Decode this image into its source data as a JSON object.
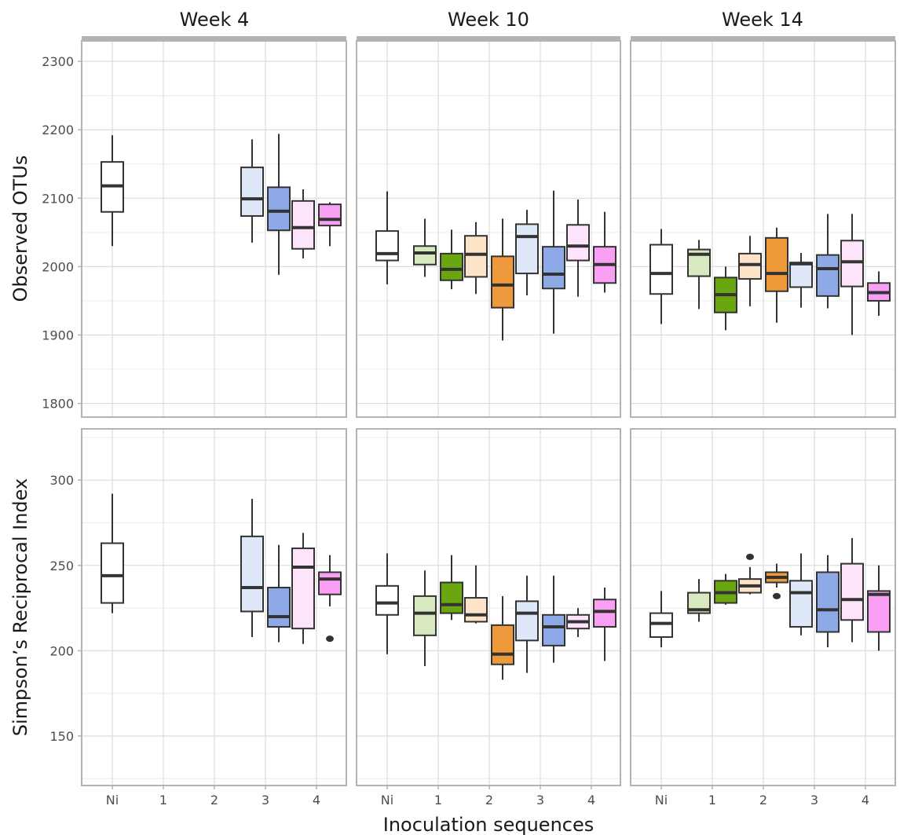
{
  "chart_data": {
    "type": "boxplot",
    "xlabel": "Inoculation sequences",
    "facet_columns": [
      "Week 4",
      "Week 10",
      "Week 14"
    ],
    "categories": [
      "Ni",
      "1",
      "2",
      "3",
      "4"
    ],
    "grid": true,
    "legend": "none",
    "series_colors": [
      "#ffffff",
      "#d8e8bf",
      "#6aa610",
      "#fde3c8",
      "#ee9a3a",
      "#dfe8f8",
      "#8eaae6",
      "#fde4fa",
      "#f9a0f5"
    ],
    "rows": [
      {
        "ylabel": "Observed OTUs",
        "ylim": [
          1780,
          2330
        ],
        "yticks": [
          1800,
          1900,
          2000,
          2100,
          2200,
          2300
        ],
        "panels": [
          {
            "week": "Week 4",
            "boxes": [
              {
                "category": "Ni",
                "offset": 0,
                "color": "#ffffff",
                "whisker_low": 2030,
                "q1": 2080,
                "median": 2118,
                "q3": 2153,
                "whisker_high": 2192,
                "outliers": []
              },
              {
                "category": "3",
                "offset": -1,
                "color": "#dfe8f8",
                "whisker_low": 2035,
                "q1": 2074,
                "median": 2099,
                "q3": 2145,
                "whisker_high": 2186,
                "outliers": []
              },
              {
                "category": "3",
                "offset": 1,
                "color": "#8eaae6",
                "whisker_low": 1988,
                "q1": 2053,
                "median": 2081,
                "q3": 2116,
                "whisker_high": 2194,
                "outliers": []
              },
              {
                "category": "4",
                "offset": -1,
                "color": "#fde4fa",
                "whisker_low": 2012,
                "q1": 2026,
                "median": 2057,
                "q3": 2096,
                "whisker_high": 2113,
                "outliers": []
              },
              {
                "category": "4",
                "offset": 1,
                "color": "#f9a0f5",
                "whisker_low": 2030,
                "q1": 2060,
                "median": 2069,
                "q3": 2091,
                "whisker_high": 2094,
                "outliers": []
              }
            ]
          },
          {
            "week": "Week 10",
            "boxes": [
              {
                "category": "Ni",
                "offset": 0,
                "color": "#ffffff",
                "whisker_low": 1974,
                "q1": 2009,
                "median": 2019,
                "q3": 2052,
                "whisker_high": 2110,
                "outliers": []
              },
              {
                "category": "1",
                "offset": -1,
                "color": "#d8e8bf",
                "whisker_low": 1985,
                "q1": 2003,
                "median": 2020,
                "q3": 2030,
                "whisker_high": 2070,
                "outliers": []
              },
              {
                "category": "1",
                "offset": 1,
                "color": "#6aa610",
                "whisker_low": 1967,
                "q1": 1980,
                "median": 1996,
                "q3": 2019,
                "whisker_high": 2054,
                "outliers": []
              },
              {
                "category": "2",
                "offset": -1,
                "color": "#fde3c8",
                "whisker_low": 1960,
                "q1": 1985,
                "median": 2018,
                "q3": 2045,
                "whisker_high": 2065,
                "outliers": []
              },
              {
                "category": "2",
                "offset": 1,
                "color": "#ee9a3a",
                "whisker_low": 1892,
                "q1": 1940,
                "median": 1973,
                "q3": 2015,
                "whisker_high": 2070,
                "outliers": []
              },
              {
                "category": "3",
                "offset": -1,
                "color": "#dfe8f8",
                "whisker_low": 1958,
                "q1": 1990,
                "median": 2044,
                "q3": 2062,
                "whisker_high": 2083,
                "outliers": []
              },
              {
                "category": "3",
                "offset": 1,
                "color": "#8eaae6",
                "whisker_low": 1902,
                "q1": 1968,
                "median": 1989,
                "q3": 2029,
                "whisker_high": 2111,
                "outliers": []
              },
              {
                "category": "4",
                "offset": -1,
                "color": "#fde4fa",
                "whisker_low": 1956,
                "q1": 2009,
                "median": 2030,
                "q3": 2061,
                "whisker_high": 2098,
                "outliers": []
              },
              {
                "category": "4",
                "offset": 1,
                "color": "#f9a0f5",
                "whisker_low": 1962,
                "q1": 1976,
                "median": 2003,
                "q3": 2029,
                "whisker_high": 2080,
                "outliers": []
              }
            ]
          },
          {
            "week": "Week 14",
            "boxes": [
              {
                "category": "Ni",
                "offset": 0,
                "color": "#ffffff",
                "whisker_low": 1916,
                "q1": 1960,
                "median": 1990,
                "q3": 2032,
                "whisker_high": 2055,
                "outliers": []
              },
              {
                "category": "1",
                "offset": -1,
                "color": "#d8e8bf",
                "whisker_low": 1938,
                "q1": 1986,
                "median": 2018,
                "q3": 2025,
                "whisker_high": 2039,
                "outliers": []
              },
              {
                "category": "1",
                "offset": 1,
                "color": "#6aa610",
                "whisker_low": 1907,
                "q1": 1933,
                "median": 1959,
                "q3": 1984,
                "whisker_high": 2000,
                "outliers": []
              },
              {
                "category": "2",
                "offset": -1,
                "color": "#fde3c8",
                "whisker_low": 1942,
                "q1": 1982,
                "median": 2003,
                "q3": 2019,
                "whisker_high": 2045,
                "outliers": []
              },
              {
                "category": "2",
                "offset": 1,
                "color": "#ee9a3a",
                "whisker_low": 1918,
                "q1": 1964,
                "median": 1990,
                "q3": 2042,
                "whisker_high": 2057,
                "outliers": []
              },
              {
                "category": "3",
                "offset": -1,
                "color": "#dfe8f8",
                "whisker_low": 1940,
                "q1": 1970,
                "median": 2004,
                "q3": 2006,
                "whisker_high": 2020,
                "outliers": []
              },
              {
                "category": "3",
                "offset": 1,
                "color": "#8eaae6",
                "whisker_low": 1939,
                "q1": 1957,
                "median": 1997,
                "q3": 2017,
                "whisker_high": 2077,
                "outliers": []
              },
              {
                "category": "4",
                "offset": -1,
                "color": "#fde4fa",
                "whisker_low": 1900,
                "q1": 1971,
                "median": 2007,
                "q3": 2038,
                "whisker_high": 2077,
                "outliers": []
              },
              {
                "category": "4",
                "offset": 1,
                "color": "#f9a0f5",
                "whisker_low": 1928,
                "q1": 1950,
                "median": 1962,
                "q3": 1976,
                "whisker_high": 1993,
                "outliers": []
              }
            ]
          }
        ]
      },
      {
        "ylabel": "Simpson’s Reciprocal Index",
        "ylim": [
          121,
          330
        ],
        "yticks": [
          150,
          200,
          250,
          300
        ],
        "panels": [
          {
            "week": "Week 4",
            "boxes": [
              {
                "category": "Ni",
                "offset": 0,
                "color": "#ffffff",
                "whisker_low": 222,
                "q1": 228,
                "median": 244,
                "q3": 263,
                "whisker_high": 292,
                "outliers": []
              },
              {
                "category": "3",
                "offset": -1,
                "color": "#dfe8f8",
                "whisker_low": 208,
                "q1": 223,
                "median": 237,
                "q3": 267,
                "whisker_high": 289,
                "outliers": []
              },
              {
                "category": "3",
                "offset": 1,
                "color": "#8eaae6",
                "whisker_low": 205,
                "q1": 214,
                "median": 220,
                "q3": 237,
                "whisker_high": 262,
                "outliers": []
              },
              {
                "category": "4",
                "offset": -1,
                "color": "#fde4fa",
                "whisker_low": 204,
                "q1": 213,
                "median": 249,
                "q3": 260,
                "whisker_high": 269,
                "outliers": []
              },
              {
                "category": "4",
                "offset": 1,
                "color": "#f9a0f5",
                "whisker_low": 226,
                "q1": 233,
                "median": 242,
                "q3": 246,
                "whisker_high": 256,
                "outliers": [
                  207
                ]
              }
            ]
          },
          {
            "week": "Week 10",
            "boxes": [
              {
                "category": "Ni",
                "offset": 0,
                "color": "#ffffff",
                "whisker_low": 198,
                "q1": 221,
                "median": 228,
                "q3": 238,
                "whisker_high": 257,
                "outliers": []
              },
              {
                "category": "1",
                "offset": -1,
                "color": "#d8e8bf",
                "whisker_low": 191,
                "q1": 209,
                "median": 222,
                "q3": 232,
                "whisker_high": 247,
                "outliers": []
              },
              {
                "category": "1",
                "offset": 1,
                "color": "#6aa610",
                "whisker_low": 218,
                "q1": 222,
                "median": 227,
                "q3": 240,
                "whisker_high": 256,
                "outliers": []
              },
              {
                "category": "2",
                "offset": -1,
                "color": "#fde3c8",
                "whisker_low": 216,
                "q1": 217,
                "median": 221,
                "q3": 231,
                "whisker_high": 250,
                "outliers": []
              },
              {
                "category": "2",
                "offset": 1,
                "color": "#ee9a3a",
                "whisker_low": 183,
                "q1": 192,
                "median": 198,
                "q3": 215,
                "whisker_high": 232,
                "outliers": []
              },
              {
                "category": "3",
                "offset": -1,
                "color": "#dfe8f8",
                "whisker_low": 187,
                "q1": 206,
                "median": 222,
                "q3": 229,
                "whisker_high": 244,
                "outliers": []
              },
              {
                "category": "3",
                "offset": 1,
                "color": "#8eaae6",
                "whisker_low": 193,
                "q1": 203,
                "median": 214,
                "q3": 221,
                "whisker_high": 244,
                "outliers": []
              },
              {
                "category": "4",
                "offset": -1,
                "color": "#fde4fa",
                "whisker_low": 208,
                "q1": 213,
                "median": 217,
                "q3": 221,
                "whisker_high": 225,
                "outliers": []
              },
              {
                "category": "4",
                "offset": 1,
                "color": "#f9a0f5",
                "whisker_low": 194,
                "q1": 214,
                "median": 223,
                "q3": 230,
                "whisker_high": 237,
                "outliers": []
              }
            ]
          },
          {
            "week": "Week 14",
            "boxes": [
              {
                "category": "Ni",
                "offset": 0,
                "color": "#ffffff",
                "whisker_low": 202,
                "q1": 208,
                "median": 216,
                "q3": 222,
                "whisker_high": 235,
                "outliers": []
              },
              {
                "category": "1",
                "offset": -1,
                "color": "#d8e8bf",
                "whisker_low": 217,
                "q1": 222,
                "median": 224,
                "q3": 234,
                "whisker_high": 242,
                "outliers": []
              },
              {
                "category": "1",
                "offset": 1,
                "color": "#6aa610",
                "whisker_low": 227,
                "q1": 228,
                "median": 234,
                "q3": 241,
                "whisker_high": 245,
                "outliers": []
              },
              {
                "category": "2",
                "offset": -1,
                "color": "#fde3c8",
                "whisker_low": 233,
                "q1": 234,
                "median": 238,
                "q3": 242,
                "whisker_high": 249,
                "outliers": [
                  255
                ]
              },
              {
                "category": "2",
                "offset": 1,
                "color": "#ee9a3a",
                "whisker_low": 237,
                "q1": 240,
                "median": 243,
                "q3": 246,
                "whisker_high": 251,
                "outliers": [
                  232
                ]
              },
              {
                "category": "3",
                "offset": -1,
                "color": "#dfe8f8",
                "whisker_low": 209,
                "q1": 214,
                "median": 234,
                "q3": 241,
                "whisker_high": 257,
                "outliers": []
              },
              {
                "category": "3",
                "offset": 1,
                "color": "#8eaae6",
                "whisker_low": 202,
                "q1": 211,
                "median": 224,
                "q3": 246,
                "whisker_high": 256,
                "outliers": []
              },
              {
                "category": "4",
                "offset": -1,
                "color": "#fde4fa",
                "whisker_low": 205,
                "q1": 218,
                "median": 230,
                "q3": 251,
                "whisker_high": 266,
                "outliers": []
              },
              {
                "category": "4",
                "offset": 1,
                "color": "#f9a0f5",
                "whisker_low": 200,
                "q1": 211,
                "median": 233,
                "q3": 235,
                "whisker_high": 250,
                "outliers": []
              }
            ]
          }
        ]
      }
    ]
  }
}
